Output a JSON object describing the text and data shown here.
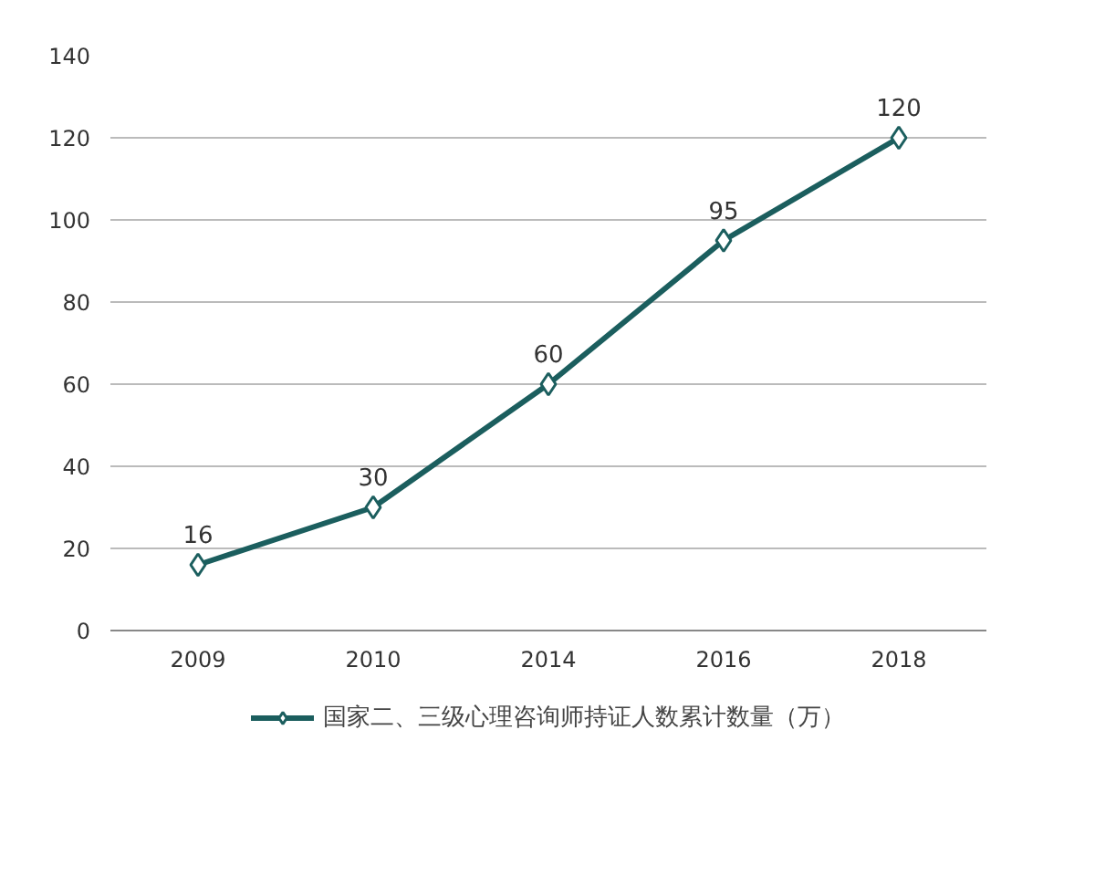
{
  "chart_data": {
    "type": "line",
    "categories": [
      "2009",
      "2010",
      "2014",
      "2016",
      "2018"
    ],
    "series": [
      {
        "name": "国家二、三级心理咨询师持证人数累计数量（万）",
        "color": "#1b5e5e",
        "values": [
          16,
          30,
          60,
          95,
          120
        ]
      }
    ],
    "ylim": [
      0,
      140
    ],
    "yticks": [
      0,
      20,
      40,
      60,
      80,
      100,
      120,
      140
    ],
    "grid": "y",
    "legend": "bottom",
    "marker": "diamond",
    "line_style": "solid",
    "data_labels": true
  }
}
